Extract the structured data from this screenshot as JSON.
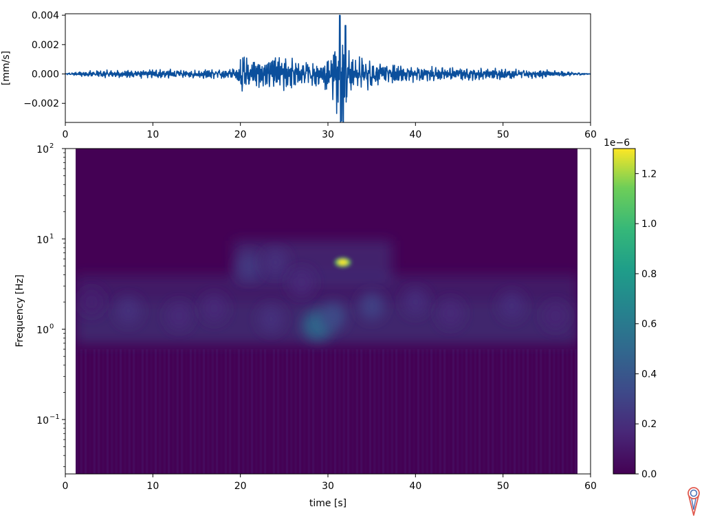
{
  "chart_data": [
    {
      "type": "line",
      "panel": "waveform",
      "title": "",
      "xlabel": "",
      "ylabel": "[mm/s]",
      "xlim": [
        0,
        60
      ],
      "ylim": [
        -0.0033,
        0.0041
      ],
      "xticks": [
        0,
        10,
        20,
        30,
        40,
        50,
        60
      ],
      "xtick_labels": [
        "0",
        "10",
        "20",
        "30",
        "40",
        "50",
        "60"
      ],
      "yticks": [
        -0.002,
        0.0,
        0.002,
        0.004
      ],
      "ytick_labels": [
        "−0.002",
        "0.000",
        "0.002",
        "0.004"
      ],
      "series_color": "#0b4f9c",
      "envelope": {
        "t": [
          0,
          1,
          3,
          8,
          12,
          16,
          19.5,
          20,
          22,
          24.5,
          27,
          29,
          30.5,
          31,
          31.4,
          31.9,
          32.5,
          34,
          36,
          40,
          45,
          50,
          55,
          58,
          60
        ],
        "amp": [
          3e-05,
          0.0001,
          0.0002,
          0.00025,
          0.00025,
          0.00025,
          0.0003,
          0.0011,
          0.0008,
          0.001,
          0.0008,
          0.0007,
          0.0012,
          0.0022,
          0.0038,
          0.0034,
          0.0012,
          0.0009,
          0.0006,
          0.00045,
          0.00035,
          0.0003,
          0.00025,
          0.0001,
          2e-05
        ]
      }
    },
    {
      "type": "heatmap",
      "panel": "scalogram",
      "title": "",
      "xlabel": "time [s]",
      "ylabel": "Frequency [Hz]",
      "xlim": [
        0,
        60
      ],
      "data_xrange": [
        1.2,
        58.6
      ],
      "ylim": [
        0.025,
        100
      ],
      "yscale": "log",
      "xticks": [
        0,
        10,
        20,
        30,
        40,
        50,
        60
      ],
      "xtick_labels": [
        "0",
        "10",
        "20",
        "30",
        "40",
        "50",
        "60"
      ],
      "yticks": [
        0.1,
        1,
        10,
        100
      ],
      "ytick_labels": [
        "10",
        "10",
        "10",
        "10"
      ],
      "ytick_exponents": [
        "−1",
        "0",
        "1",
        "2"
      ],
      "colormap": "viridis",
      "hotspots": [
        {
          "t": 31.7,
          "f": 5.5,
          "value": 1.3e-06
        },
        {
          "t": 28.8,
          "f": 1.1,
          "value": 6e-07
        },
        {
          "t": 30.6,
          "f": 1.4,
          "value": 4e-07
        },
        {
          "t": 21,
          "f": 5.0,
          "value": 3e-07
        },
        {
          "t": 35,
          "f": 1.8,
          "value": 3.5e-07
        },
        {
          "t": 7.2,
          "f": 1.6,
          "value": 2.5e-07
        },
        {
          "t": 23.5,
          "f": 1.3,
          "value": 2.5e-07
        },
        {
          "t": 24,
          "f": 5.5,
          "value": 2.5e-07
        },
        {
          "t": 27,
          "f": 3.3,
          "value": 2e-07
        },
        {
          "t": 40,
          "f": 2.0,
          "value": 2.2e-07
        },
        {
          "t": 44,
          "f": 1.5,
          "value": 2e-07
        },
        {
          "t": 51,
          "f": 1.8,
          "value": 2.2e-07
        },
        {
          "t": 13,
          "f": 1.4,
          "value": 2e-07
        },
        {
          "t": 17,
          "f": 1.7,
          "value": 2e-07
        },
        {
          "t": 3,
          "f": 2.0,
          "value": 1.5e-07
        },
        {
          "t": 56,
          "f": 1.4,
          "value": 1.8e-07
        }
      ]
    },
    {
      "type": "colorbar",
      "panel": "colorbar",
      "scale_label": "1e−6",
      "range": [
        0.0,
        1.3
      ],
      "ticks": [
        0.0,
        0.2,
        0.4,
        0.6,
        0.8,
        1.0,
        1.2
      ],
      "tick_labels": [
        "0.0",
        "0.2",
        "0.4",
        "0.6",
        "0.8",
        "1.0",
        "1.2"
      ],
      "colormap": "viridis"
    }
  ],
  "colors": {
    "line": "#0b4f9c",
    "viridis_low": "#440154",
    "viridis_high": "#fde725",
    "logo_red": "#e05a4f",
    "logo_blue": "#4a6fb5"
  },
  "logo": {
    "icon": "logo-icon"
  }
}
